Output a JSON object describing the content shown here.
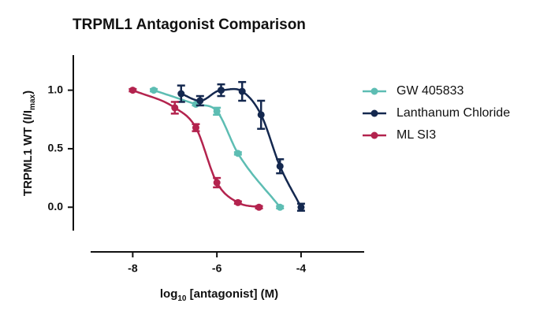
{
  "chart_data": {
    "type": "dose-response",
    "title": "TRPML1 Antagonist Comparison",
    "xlabel_parts": [
      "log",
      "10",
      " [antagonist] (M)"
    ],
    "ylabel_parts": [
      "TRPML1 WT (I/I",
      "max",
      ")"
    ],
    "xlim": [
      -9,
      -2.5
    ],
    "xticks": [
      -8,
      -6,
      -4
    ],
    "ylim": [
      -0.2,
      1.3
    ],
    "yticks": [
      {
        "value": 0,
        "label": "0.0"
      },
      {
        "value": 0.5,
        "label": "0.5"
      },
      {
        "value": 1,
        "label": "1.0"
      }
    ],
    "series": [
      {
        "name": "GW 405833",
        "color": "#5dbdb3",
        "x": [
          -7.5,
          -6.5,
          -6,
          -5.5,
          -4.5
        ],
        "values": [
          1.0,
          0.88,
          0.82,
          0.46,
          0.0
        ],
        "errors": [
          0.01,
          0.01,
          0.03,
          0.01,
          0.01
        ]
      },
      {
        "name": "Lanthanum Chloride",
        "color": "#14284f",
        "x": [
          -6.85,
          -6.4,
          -5.9,
          -5.4,
          -4.95,
          -4.5,
          -4
        ],
        "values": [
          0.97,
          0.91,
          1.0,
          0.99,
          0.79,
          0.35,
          0.0
        ],
        "errors": [
          0.07,
          0.04,
          0.05,
          0.08,
          0.12,
          0.06,
          0.03
        ]
      },
      {
        "name": "ML SI3",
        "color": "#b3234e",
        "x": [
          -8,
          -7,
          -6.5,
          -6,
          -5.5,
          -5
        ],
        "values": [
          1.0,
          0.85,
          0.68,
          0.21,
          0.04,
          0.0
        ],
        "errors": [
          0.01,
          0.05,
          0.03,
          0.04,
          0.01,
          0.01
        ]
      }
    ]
  }
}
